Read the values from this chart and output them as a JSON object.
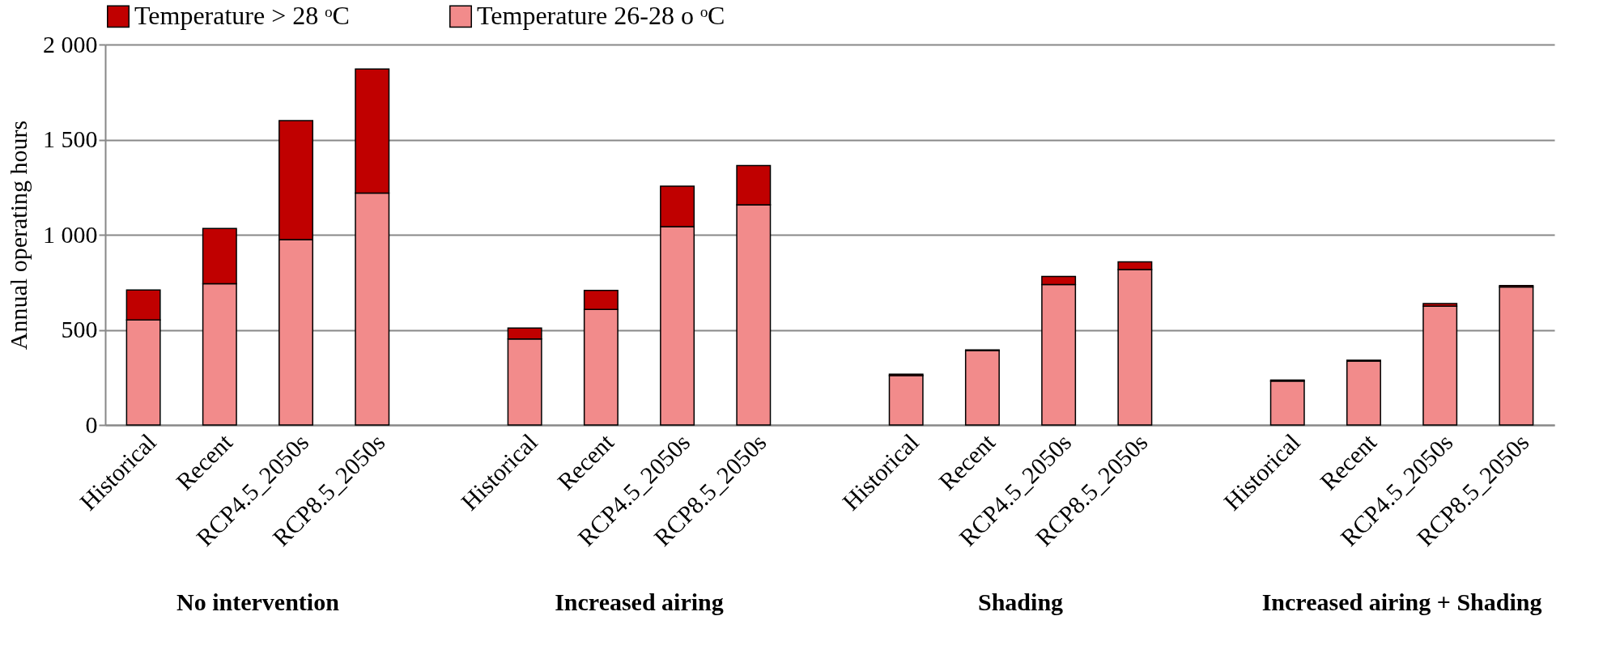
{
  "chart_data": {
    "type": "bar",
    "stacked": true,
    "ylabel": "Annual operating hours",
    "categories": [
      "Historical",
      "Recent",
      "RCP4.5_2050s",
      "RCP8.5_2050s",
      null,
      "Historical",
      "Recent",
      "RCP4.5_2050s",
      "RCP8.5_2050s",
      null,
      "Historical",
      "Recent",
      "RCP4.5_2050s",
      "RCP8.5_2050s",
      null,
      "Historical",
      "Recent",
      "RCP4.5_2050s",
      "RCP8.5_2050s"
    ],
    "series": [
      {
        "name": "Temperature 26-28 o ᵒC",
        "color": "#f28b8b",
        "values": [
          552,
          743,
          974,
          1219,
          null,
          452,
          607,
          1043,
          1157,
          null,
          260,
          390,
          738,
          817,
          null,
          231,
          336,
          624,
          726
        ]
      },
      {
        "name": "Temperature > 28 ᵒC",
        "color": "#c00000",
        "values": [
          158,
          290,
          626,
          652,
          null,
          58,
          100,
          212,
          207,
          null,
          7,
          5,
          43,
          40,
          null,
          5,
          4,
          14,
          7
        ]
      }
    ],
    "ylim": [
      0,
      2000
    ],
    "yticks": [
      0,
      500,
      {
        "value": 1000,
        "label": "1 000"
      },
      {
        "value": 1500,
        "label": "1 500"
      },
      {
        "value": 2000,
        "label": "2 000"
      }
    ],
    "grid": "y",
    "legend": "top",
    "annotations": [
      "No intervention",
      "Increased airing",
      "Shading",
      "Increased airing + Shading"
    ]
  }
}
